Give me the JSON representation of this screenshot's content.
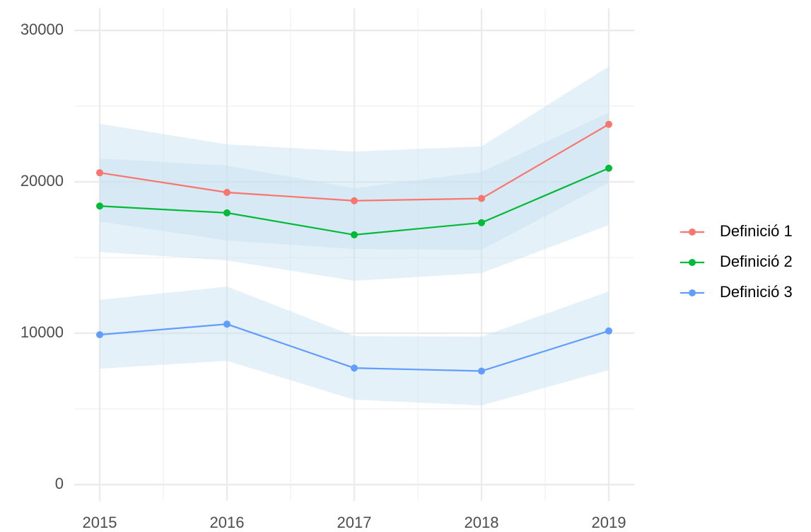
{
  "chart_data": {
    "type": "line",
    "x": [
      2015,
      2016,
      2017,
      2018,
      2019
    ],
    "xlim": [
      2014.8,
      2019.2
    ],
    "xticks": [
      2015,
      2016,
      2017,
      2018,
      2019
    ],
    "ylim": [
      -1075,
      31450
    ],
    "yticks": [
      0,
      10000,
      20000,
      30000
    ],
    "grid": true,
    "minor_grid": true,
    "legend": "right",
    "ribbon_color": "#c6dff0",
    "series": [
      {
        "name": "Definició 1",
        "color": "#f8766d",
        "values": [
          20600,
          19300,
          18750,
          18900,
          23800
        ],
        "lower": [
          17380,
          16120,
          15560,
          15510,
          19950
        ],
        "upper": [
          23830,
          22480,
          22000,
          22340,
          27620
        ]
      },
      {
        "name": "Definició 2",
        "color": "#00ba38",
        "values": [
          18400,
          17950,
          16500,
          17300,
          20900
        ],
        "lower": [
          15370,
          14810,
          13460,
          13970,
          17150
        ],
        "upper": [
          21540,
          21070,
          19580,
          20650,
          24580
        ]
      },
      {
        "name": "Definició 3",
        "color": "#619cff",
        "values": [
          9900,
          10600,
          7700,
          7500,
          10150
        ],
        "lower": [
          7660,
          8180,
          5610,
          5230,
          7570
        ],
        "upper": [
          12200,
          13080,
          9810,
          9770,
          12760
        ]
      }
    ]
  }
}
